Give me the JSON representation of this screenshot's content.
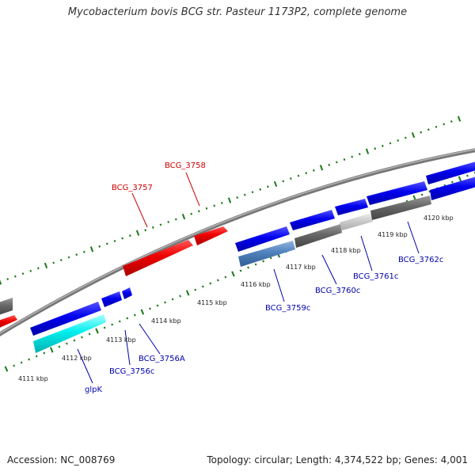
{
  "title": "Mycobacterium bovis BCG str. Pasteur 1173P2, complete genome",
  "footer": {
    "accession": "Accession: NC_008769",
    "summary": "Topology: circular; Length: 4,374,522 bp; Genes: 4,001"
  },
  "colors": {
    "forward_gene": "#dd0000",
    "reverse_gene": "#0000dd",
    "cyan_gene": "#00e5e5",
    "steel_gene": "#4f81bd",
    "dark_gray_gene": "#666666",
    "light_gray_gene": "#c8c8c8",
    "backbone": "#888888",
    "tick_green": "#1a7a1a",
    "forward_label": "#cc0000",
    "reverse_label": "#0000aa"
  },
  "tick_labels": [
    "4111 kbp",
    "4112 kbp",
    "4113 kbp",
    "4114 kbp",
    "4115 kbp",
    "4116 kbp",
    "4117 kbp",
    "4118 kbp",
    "4119 kbp",
    "4120 kbp"
  ],
  "gene_labels": {
    "bcg_3757": "BCG_3757",
    "bcg_3758": "BCG_3758",
    "glpk": "glpK",
    "bcg_3756c": "BCG_3756c",
    "bcg_3756a": "BCG_3756A",
    "bcg_3759c": "BCG_3759c",
    "bcg_3760c": "BCG_3760c",
    "bcg_3761c": "BCG_3761c",
    "bcg_3762c": "BCG_3762c"
  }
}
